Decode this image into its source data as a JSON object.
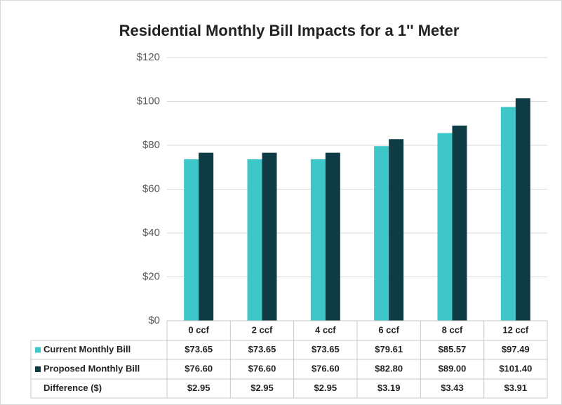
{
  "chart_data": {
    "type": "bar",
    "title": "Residential Monthly Bill Impacts for a 1'' Meter",
    "categories": [
      "0 ccf",
      "2 ccf",
      "4 ccf",
      "6 ccf",
      "8 ccf",
      "12 ccf"
    ],
    "series": [
      {
        "name": "Current Monthly Bill",
        "color": "#3ec6c8",
        "values": [
          73.65,
          73.65,
          73.65,
          79.61,
          85.57,
          97.49
        ],
        "value_labels": [
          "$73.65",
          "$73.65",
          "$73.65",
          "$79.61",
          "$85.57",
          "$97.49"
        ]
      },
      {
        "name": "Proposed Monthly Bill",
        "color": "#0f3c44",
        "values": [
          76.6,
          76.6,
          76.6,
          82.8,
          89.0,
          101.4
        ],
        "value_labels": [
          "$76.60",
          "$76.60",
          "$76.60",
          "$82.80",
          "$89.00",
          "$101.40"
        ]
      }
    ],
    "difference": {
      "name": "Difference ($)",
      "labels": [
        "$2.95",
        "$2.95",
        "$2.95",
        "$3.19",
        "$3.43",
        "$3.91"
      ]
    },
    "ylim": [
      0,
      120
    ],
    "yticks": [
      {
        "value": 0,
        "label": "$0"
      },
      {
        "value": 20,
        "label": "$20"
      },
      {
        "value": 40,
        "label": "$40"
      },
      {
        "value": 60,
        "label": "$60"
      },
      {
        "value": 80,
        "label": "$80"
      },
      {
        "value": 100,
        "label": "$100"
      },
      {
        "value": 120,
        "label": "$120"
      }
    ],
    "grid": true
  }
}
